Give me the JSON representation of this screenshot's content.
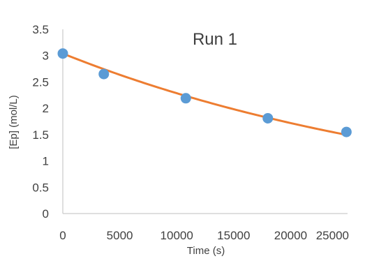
{
  "chart_data": {
    "type": "scatter",
    "title": "Run 1",
    "xlabel": "Time (s)",
    "ylabel": "[Ep] (mol/L)",
    "xlim": [
      0,
      25000
    ],
    "ylim": [
      0,
      3.5
    ],
    "x_ticks": [
      0,
      5000,
      10000,
      15000,
      20000,
      25000
    ],
    "y_ticks": [
      0,
      0.5,
      1,
      1.5,
      2,
      2.5,
      3,
      3.5
    ],
    "x_tick_labels": [
      "0",
      "5000",
      "10000",
      "15000",
      "20000",
      "25000"
    ],
    "y_tick_labels": [
      "0",
      "0.5",
      "1",
      "1.5",
      "2",
      "2.5",
      "3",
      "3.5"
    ],
    "grid": false,
    "series": [
      {
        "type": "scatter",
        "color": "#5b9bd5",
        "x": [
          0,
          3600,
          10800,
          18000,
          24900
        ],
        "y": [
          3.04,
          2.65,
          2.19,
          1.81,
          1.55
        ]
      },
      {
        "type": "line",
        "trendline": "exponential",
        "color": "#ed7d31",
        "a": 3.04,
        "b": -2.85e-05,
        "x_range": [
          0,
          24900
        ]
      }
    ]
  }
}
